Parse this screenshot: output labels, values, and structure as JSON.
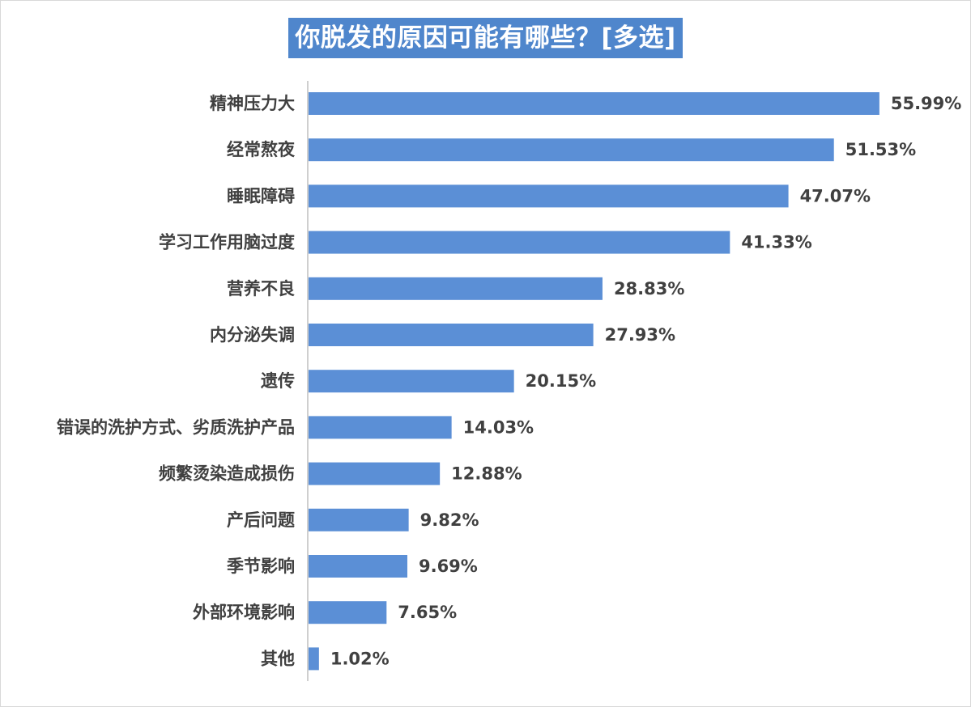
{
  "chart_data": {
    "type": "bar",
    "orientation": "horizontal",
    "title": "你脱发的原因可能有哪些？[多选]",
    "categories": [
      "精神压力大",
      "经常熬夜",
      "睡眠障碍",
      "学习工作用脑过度",
      "营养不良",
      "内分泌失调",
      "遗传",
      "错误的洗护方式、劣质洗护产品",
      "频繁烫染造成损伤",
      "产后问题",
      "季节影响",
      "外部环境影响",
      "其他"
    ],
    "values": [
      55.99,
      51.53,
      47.07,
      41.33,
      28.83,
      27.93,
      20.15,
      14.03,
      12.88,
      9.82,
      9.69,
      7.65,
      1.02
    ],
    "value_labels": [
      "55.99%",
      "51.53%",
      "47.07%",
      "41.33%",
      "28.83%",
      "27.93%",
      "20.15%",
      "14.03%",
      "12.88%",
      "9.82%",
      "9.69%",
      "7.65%",
      "1.02%"
    ],
    "unit": "%",
    "xlim": [
      0,
      56
    ],
    "grid": false,
    "legend": "none",
    "colors": {
      "bar": "#5b8fd6",
      "title_bg": "#4f86cc",
      "title_text": "#ffffff",
      "label_text": "#404040",
      "axis_line": "#bfbfbf"
    }
  }
}
